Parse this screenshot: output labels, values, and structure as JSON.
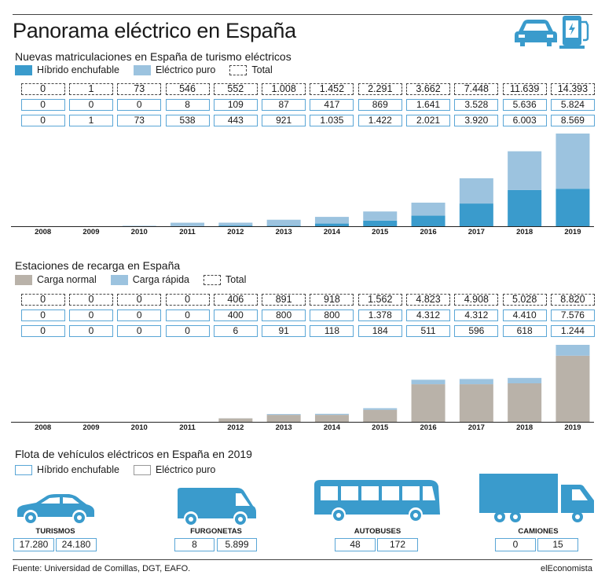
{
  "title": "Panorama eléctrico en España",
  "colors": {
    "hibrido": "#3a9bcc",
    "electrico": "#9cc3df",
    "carga_normal": "#b9b2a9",
    "carga_rapida": "#9cc3df",
    "icon_blue": "#3a9bcc"
  },
  "icons": [
    "car-icon",
    "charging-station-icon"
  ],
  "section1": {
    "title": "Nuevas matriculaciones en España de turismo eléctricos",
    "legend": [
      "Híbrido enchufable",
      "Eléctrico puro",
      "Total"
    ]
  },
  "section2": {
    "title": "Estaciones de recarga en España",
    "legend": [
      "Carga normal",
      "Carga rápida",
      "Total"
    ]
  },
  "chart_data": [
    {
      "type": "bar",
      "stacked": true,
      "categories": [
        "2008",
        "2009",
        "2010",
        "2011",
        "2012",
        "2013",
        "2014",
        "2015",
        "2016",
        "2017",
        "2018",
        "2019"
      ],
      "series": [
        {
          "name": "Híbrido enchufable",
          "values": [
            0,
            0,
            0,
            8,
            109,
            87,
            417,
            869,
            1641,
            3528,
            5636,
            5824
          ]
        },
        {
          "name": "Eléctrico puro",
          "values": [
            0,
            1,
            73,
            538,
            443,
            921,
            1035,
            1422,
            2021,
            3920,
            6003,
            8569
          ]
        }
      ],
      "totals": [
        0,
        1,
        73,
        546,
        552,
        1008,
        1452,
        2291,
        3662,
        7448,
        11639,
        14393
      ],
      "labels": {
        "totals": [
          "0",
          "1",
          "73",
          "546",
          "552",
          "1.008",
          "1.452",
          "2.291",
          "3.662",
          "7.448",
          "11.639",
          "14.393"
        ],
        "series0": [
          "0",
          "0",
          "0",
          "8",
          "109",
          "87",
          "417",
          "869",
          "1.641",
          "3.528",
          "5.636",
          "5.824"
        ],
        "series1": [
          "0",
          "1",
          "73",
          "538",
          "443",
          "921",
          "1.035",
          "1.422",
          "2.021",
          "3.920",
          "6.003",
          "8.569"
        ]
      },
      "ylim": [
        0,
        14393
      ]
    },
    {
      "type": "bar",
      "stacked": true,
      "categories": [
        "2008",
        "2009",
        "2010",
        "2011",
        "2012",
        "2013",
        "2014",
        "2015",
        "2016",
        "2017",
        "2018",
        "2019"
      ],
      "series": [
        {
          "name": "Carga normal",
          "values": [
            0,
            0,
            0,
            0,
            400,
            800,
            800,
            1378,
            4312,
            4312,
            4410,
            7576
          ]
        },
        {
          "name": "Carga rápida",
          "values": [
            0,
            0,
            0,
            0,
            6,
            91,
            118,
            184,
            511,
            596,
            618,
            1244
          ]
        }
      ],
      "totals": [
        0,
        0,
        0,
        0,
        406,
        891,
        918,
        1562,
        4823,
        4908,
        5028,
        8820
      ],
      "labels": {
        "totals": [
          "0",
          "0",
          "0",
          "0",
          "406",
          "891",
          "918",
          "1.562",
          "4.823",
          "4.908",
          "5.028",
          "8.820"
        ],
        "series0": [
          "0",
          "0",
          "0",
          "0",
          "400",
          "800",
          "800",
          "1.378",
          "4.312",
          "4.312",
          "4.410",
          "7.576"
        ],
        "series1": [
          "0",
          "0",
          "0",
          "0",
          "6",
          "91",
          "118",
          "184",
          "511",
          "596",
          "618",
          "1.244"
        ]
      },
      "ylim": [
        0,
        8820
      ]
    }
  ],
  "fleet": {
    "title": "Flota de vehículos eléctricos en España en 2019",
    "legend": [
      "Híbrido enchufable",
      "Eléctrico puro"
    ],
    "vehicles": [
      {
        "name": "TURISMOS",
        "icon": "car-icon",
        "hibrido": "17.280",
        "electrico": "24.180"
      },
      {
        "name": "FURGONETAS",
        "icon": "van-icon",
        "hibrido": "8",
        "electrico": "5.899"
      },
      {
        "name": "AUTOBUSES",
        "icon": "bus-icon",
        "hibrido": "48",
        "electrico": "172"
      },
      {
        "name": "CAMIONES",
        "icon": "truck-icon",
        "hibrido": "0",
        "electrico": "15"
      }
    ]
  },
  "footer": {
    "source": "Fuente: Universidad de Comillas, DGT, EAFO.",
    "brand": "elEconomista"
  }
}
